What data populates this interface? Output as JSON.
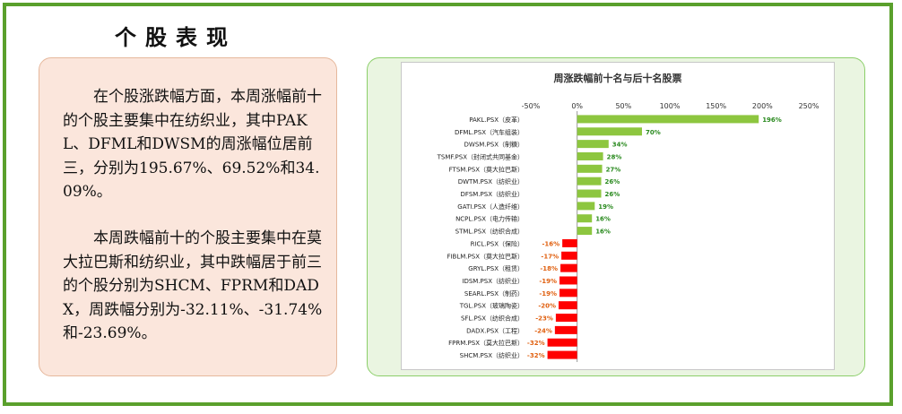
{
  "page_title": "个股表现",
  "paragraphs": [
    "在个股涨跌幅方面，本周涨幅前十的个股主要集中在纺织业，其中PAKL、DFML和DWSM的周涨幅位居前三，分别为195.67%、69.52%和34.09%。",
    "本周跌幅前十的个股主要集中在莫大拉巴斯和纺织业，其中跌幅居于前三的个股分别为SHCM、FPRM和DADX，周跌幅分别为-32.11%、-31.74%和-23.69%。"
  ],
  "colors": {
    "positive": "#8dc63f",
    "negative": "#ff0000",
    "positive_label": "#2a8a1f",
    "negative_label": "#e06010",
    "frame": "#5aa02c"
  },
  "chart_data": {
    "type": "bar",
    "orientation": "horizontal",
    "title": "周涨跌幅前十名与后十名股票",
    "xlim": [
      -50,
      250
    ],
    "xticks": [
      "-50%",
      "0%",
      "50%",
      "100%",
      "150%",
      "200%",
      "250%"
    ],
    "xtick_values": [
      -50,
      0,
      50,
      100,
      150,
      200,
      250
    ],
    "grid": false,
    "categories": [
      "PAKL.PSX（皮革）",
      "DFML.PSX（汽车组装）",
      "DWSM.PSX（制糖）",
      "TSMF.PSX（封闭式共同基金）",
      "FTSM.PSX（莫大拉巴斯）",
      "DWTM.PSX（纺织业）",
      "DFSM.PSX（纺织业）",
      "GATI.PSX（人造纤维）",
      "NCPL.PSX（电力传输）",
      "STML.PSX（纺织合成）",
      "RICL.PSX（保险）",
      "FIBLM.PSX（莫大拉巴斯）",
      "GRYL.PSX（租赁）",
      "IDSM.PSX（纺织业）",
      "SEARL.PSX（制药）",
      "TGL.PSX（玻璃陶瓷）",
      "SFL.PSX（纺织合成）",
      "DADX.PSX（工程）",
      "FPRM.PSX（莫大拉巴斯）",
      "SHCM.PSX（纺织业）"
    ],
    "values": [
      196,
      70,
      34,
      28,
      27,
      26,
      26,
      19,
      16,
      16,
      -16,
      -17,
      -18,
      -19,
      -19,
      -20,
      -23,
      -24,
      -32,
      -32
    ],
    "data_labels": [
      "196%",
      "70%",
      "34%",
      "28%",
      "27%",
      "26%",
      "26%",
      "19%",
      "16%",
      "16%",
      "-16%",
      "-17%",
      "-18%",
      "-19%",
      "-19%",
      "-20%",
      "-23%",
      "-24%",
      "-32%",
      "-32%"
    ]
  }
}
